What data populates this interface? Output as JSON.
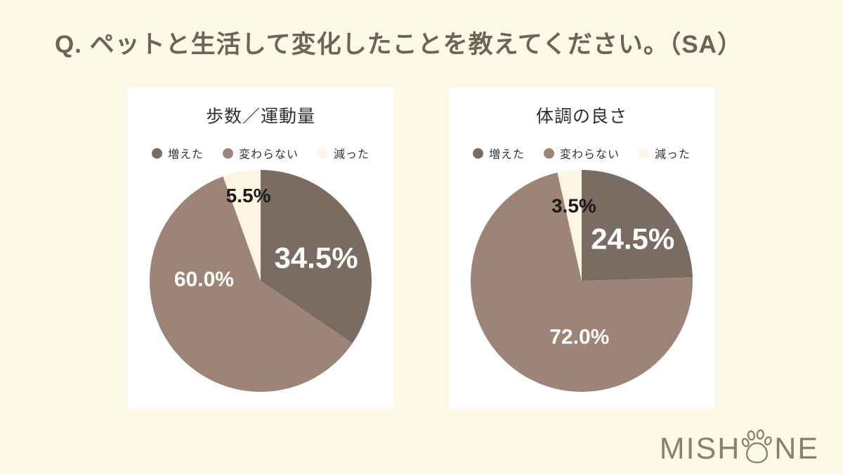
{
  "header": {
    "title": "Q. ペットと生活して変化したことを教えてください。（SA）"
  },
  "chart_data": [
    {
      "type": "pie",
      "title": "歩数／運動量",
      "legend": [
        "増えた",
        "変わらない",
        "減った"
      ],
      "values": [
        34.5,
        60.0,
        5.5
      ],
      "value_labels": [
        "34.5%",
        "60.0%",
        "5.5%"
      ],
      "slice_colors": [
        "#7a6c62",
        "#9d8476",
        "#fbf5e1"
      ],
      "value_label_colors": [
        "#ffffff",
        "#ffffff",
        "#1a1a1a"
      ],
      "start_angle_deg": 0,
      "direction": "clockwise",
      "legend_position": "top",
      "label_pos": [
        [
          0.5,
          -0.21
        ],
        [
          -0.51,
          -0.02
        ],
        [
          -0.11,
          -0.77
        ]
      ]
    },
    {
      "type": "pie",
      "title": "体調の良さ",
      "legend": [
        "増えた",
        "変わらない",
        "減った"
      ],
      "values": [
        24.5,
        72.0,
        3.5
      ],
      "value_labels": [
        "24.5%",
        "72.0%",
        "3.5%"
      ],
      "slice_colors": [
        "#7a6c62",
        "#9d8476",
        "#fbf5e1"
      ],
      "value_label_colors": [
        "#ffffff",
        "#ffffff",
        "#1a1a1a"
      ],
      "start_angle_deg": 0,
      "direction": "clockwise",
      "legend_position": "top",
      "label_pos": [
        [
          0.46,
          -0.38
        ],
        [
          -0.02,
          0.5
        ],
        [
          -0.07,
          -0.68
        ]
      ]
    }
  ],
  "footer": {
    "logo_text_left": "MISH",
    "logo_text_right": "NE",
    "logo_color": "#8a7d72"
  },
  "colors": {
    "background": "#fdf9e7",
    "card_background": "#ffffff"
  }
}
